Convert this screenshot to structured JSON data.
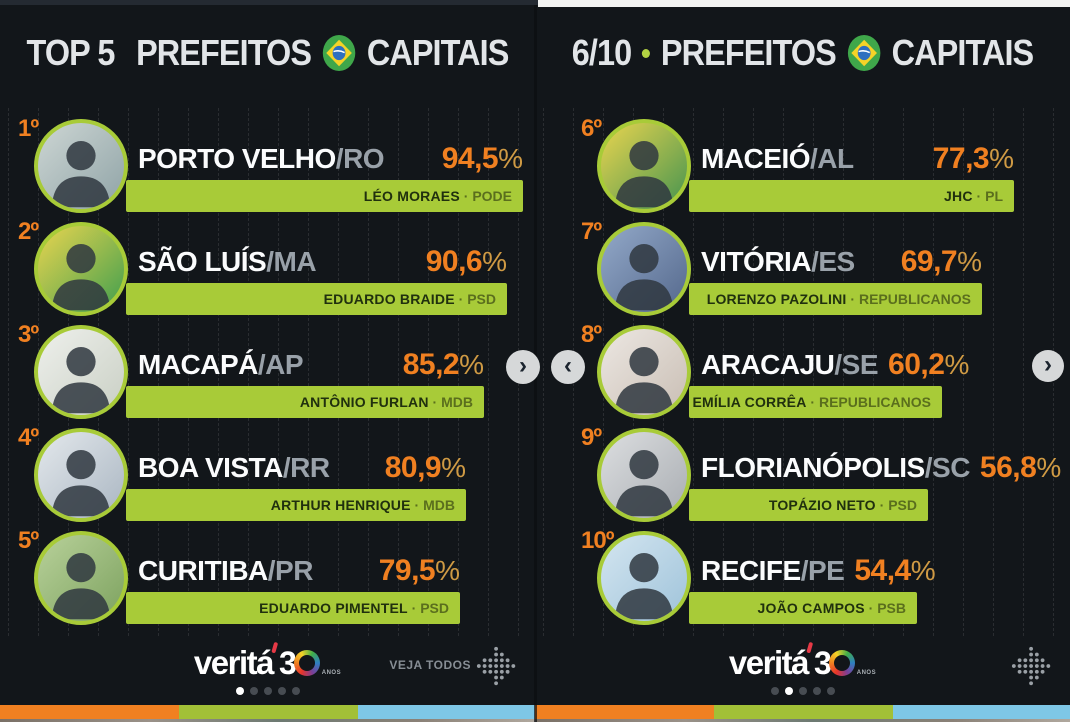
{
  "ui": {
    "separator": "·",
    "percent_sign": "%",
    "chevron_left": "‹",
    "chevron_right": "›"
  },
  "logo": {
    "brand": "veritá",
    "number_3": "3",
    "anos": "ANOS"
  },
  "colors": {
    "background": "#12161a",
    "bar_green": "#a8cb38",
    "accent_orange": "#f08021",
    "state_gray": "#99a1a9",
    "name_dark": "#20300e",
    "stripe_orange": "#f08021",
    "stripe_green": "#a2c037",
    "stripe_blue": "#7ec7e6"
  },
  "panels": [
    {
      "id": "top5",
      "title_prefix": "TOP 5",
      "title_word": "PREFEITOS",
      "title_suffix": "CAPITAIS",
      "veja_todos_label": "VEJA TODOS",
      "dots": 5,
      "active_dot": 0,
      "rows": [
        {
          "rank": "1º",
          "city": "PORTO VELHO",
          "state": "/RO",
          "value_label": "94,5",
          "value": 94.5,
          "mayor": "LÉO MORAES",
          "party": "PODE",
          "avatar_bg1": "#cdd6d4",
          "avatar_bg2": "#8fa3a6"
        },
        {
          "rank": "2º",
          "city": "SÃO LUÍS",
          "state": "/MA",
          "value_label": "90,6",
          "value": 90.6,
          "mayor": "EDUARDO BRAIDE",
          "party": "PSD",
          "avatar_bg1": "#ead54f",
          "avatar_bg2": "#3f9e4e"
        },
        {
          "rank": "3º",
          "city": "MACAPÁ",
          "state": "/AP",
          "value_label": "85,2",
          "value": 85.2,
          "mayor": "ANTÔNIO FURLAN",
          "party": "MDB",
          "avatar_bg1": "#eef0ec",
          "avatar_bg2": "#c9cfc4"
        },
        {
          "rank": "4º",
          "city": "BOA VISTA",
          "state": "/RR",
          "value_label": "80,9",
          "value": 80.9,
          "mayor": "ARTHUR HENRIQUE",
          "party": "MDB",
          "avatar_bg1": "#e3e8ec",
          "avatar_bg2": "#aab6c2"
        },
        {
          "rank": "5º",
          "city": "CURITIBA",
          "state": "/PR",
          "value_label": "79,5",
          "value": 79.5,
          "mayor": "EDUARDO PIMENTEL",
          "party": "PSD",
          "avatar_bg1": "#b8d19a",
          "avatar_bg2": "#7da25f"
        }
      ]
    },
    {
      "id": "6-10",
      "title_prefix": "6/10",
      "title_word": "PREFEITOS",
      "title_suffix": "CAPITAIS",
      "dots": 5,
      "active_dot": 1,
      "rows": [
        {
          "rank": "6º",
          "city": "MACEIÓ",
          "state": "/AL",
          "value_label": "77,3",
          "value": 77.3,
          "mayor": "JHC",
          "party": "PL",
          "avatar_bg1": "#ead54f",
          "avatar_bg2": "#44934f"
        },
        {
          "rank": "7º",
          "city": "VITÓRIA",
          "state": "/ES",
          "value_label": "69,7",
          "value": 69.7,
          "mayor": "LORENZO PAZOLINI",
          "party": "REPUBLICANOS",
          "avatar_bg1": "#93a9c9",
          "avatar_bg2": "#54688c"
        },
        {
          "rank": "8º",
          "city": "ARACAJU",
          "state": "/SE",
          "value_label": "60,2",
          "value": 60.2,
          "mayor": "EMÍLIA CORRÊA",
          "party": "REPUBLICANOS",
          "avatar_bg1": "#ece7e2",
          "avatar_bg2": "#c9beb4"
        },
        {
          "rank": "9º",
          "city": "FLORIANÓPOLIS",
          "state": "/SC",
          "value_label": "56,8",
          "value": 56.8,
          "mayor": "TOPÁZIO NETO",
          "party": "PSD",
          "avatar_bg1": "#dcdee0",
          "avatar_bg2": "#a9adb2"
        },
        {
          "rank": "10º",
          "city": "RECIFE",
          "state": "/PE",
          "value_label": "54,4",
          "value": 54.4,
          "mayor": "JOÃO CAMPOS",
          "party": "PSB",
          "avatar_bg1": "#d3e5f0",
          "avatar_bg2": "#9fc3da"
        }
      ]
    }
  ],
  "chart_data": [
    {
      "type": "bar",
      "orientation": "horizontal",
      "title": "TOP 5 · PREFEITOS CAPITAIS",
      "categories": [
        "PORTO VELHO/RO",
        "SÃO LUÍS/MA",
        "MACAPÁ/AP",
        "BOA VISTA/RR",
        "CURITIBA/PR"
      ],
      "values": [
        94.5,
        90.6,
        85.2,
        80.9,
        79.5
      ],
      "value_labels": [
        "94,5%",
        "90,6%",
        "85,2%",
        "80,9%",
        "79,5%"
      ],
      "annotations": [
        "LÉO MORAES · PODE",
        "EDUARDO BRAIDE · PSD",
        "ANTÔNIO FURLAN · MDB",
        "ARTHUR HENRIQUE · MDB",
        "EDUARDO PIMENTEL · PSD"
      ],
      "xlabel": "",
      "ylabel": "",
      "xlim": [
        0,
        100
      ],
      "grid": false,
      "legend": false
    },
    {
      "type": "bar",
      "orientation": "horizontal",
      "title": "6/10 · PREFEITOS CAPITAIS",
      "categories": [
        "MACEIÓ/AL",
        "VITÓRIA/ES",
        "ARACAJU/SE",
        "FLORIANÓPOLIS/SC",
        "RECIFE/PE"
      ],
      "values": [
        77.3,
        69.7,
        60.2,
        56.8,
        54.4
      ],
      "value_labels": [
        "77,3%",
        "69,7%",
        "60,2%",
        "56,8%",
        "54,4%"
      ],
      "annotations": [
        "JHC · PL",
        "LORENZO PAZOLINI · REPUBLICANOS",
        "EMÍLIA CORRÊA · REPUBLICANOS",
        "TOPÁZIO NETO · PSD",
        "JOÃO CAMPOS · PSB"
      ],
      "xlabel": "",
      "ylabel": "",
      "xlim": [
        0,
        100
      ],
      "grid": false,
      "legend": false
    }
  ]
}
